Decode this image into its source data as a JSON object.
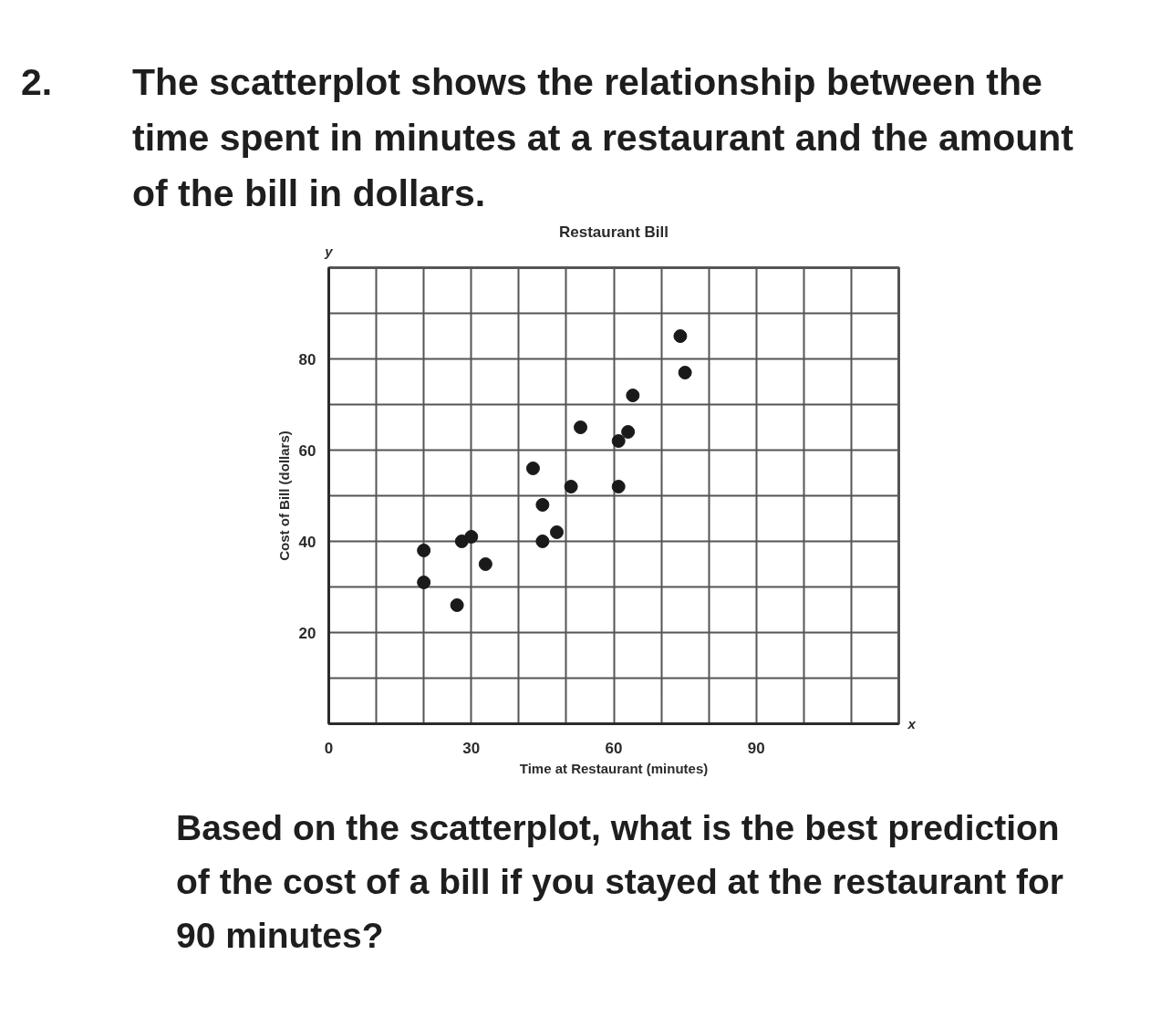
{
  "chart_data": {
    "type": "scatter",
    "title": "Restaurant Bill",
    "xlabel": "Time at Restaurant (minutes)",
    "ylabel": "Cost of Bill (dollars)",
    "annotations": [
      "2. The scatterplot shows the relationship between the time spent in minutes at a restaurant and the amount of the bill in dollars.",
      "y",
      "x",
      "Based on the scatterplot, what is the best prediction of the cost of a bill if you stayed at the restaurant for 90 minutes?"
    ],
    "x": [
      20,
      20,
      27,
      28,
      30,
      33,
      43,
      45,
      45,
      48,
      51,
      53,
      61,
      61,
      63,
      64,
      74,
      75
    ],
    "series": [
      {
        "color": "#1a1a1a",
        "values": [
          38,
          31,
          26,
          40,
          41,
          35,
          56,
          48,
          40,
          42,
          52,
          65,
          52,
          62,
          64,
          72,
          85,
          77
        ]
      }
    ],
    "xlim": [
      0,
      120
    ],
    "ylim": [
      0,
      100
    ],
    "xticks": [
      {
        "value": 0,
        "label": "0"
      },
      {
        "value": 10,
        "label": null
      },
      {
        "value": 20,
        "label": null
      },
      30,
      {
        "value": 40,
        "label": null
      },
      {
        "value": 50,
        "label": null
      },
      60,
      {
        "value": 70,
        "label": null
      },
      {
        "value": 80,
        "label": null
      },
      90,
      {
        "value": 100,
        "label": null
      },
      {
        "value": 110,
        "label": null
      },
      {
        "value": 120,
        "label": null
      }
    ],
    "yticks": [
      {
        "value": 0,
        "label": null
      },
      {
        "value": 10,
        "label": null
      },
      20,
      {
        "value": 30,
        "label": null
      },
      40,
      {
        "value": 50,
        "label": null
      },
      60,
      {
        "value": 70,
        "label": null
      },
      80,
      {
        "value": 90,
        "label": null
      },
      {
        "value": 100,
        "label": null
      }
    ],
    "grid": true,
    "marker": "circle"
  }
}
